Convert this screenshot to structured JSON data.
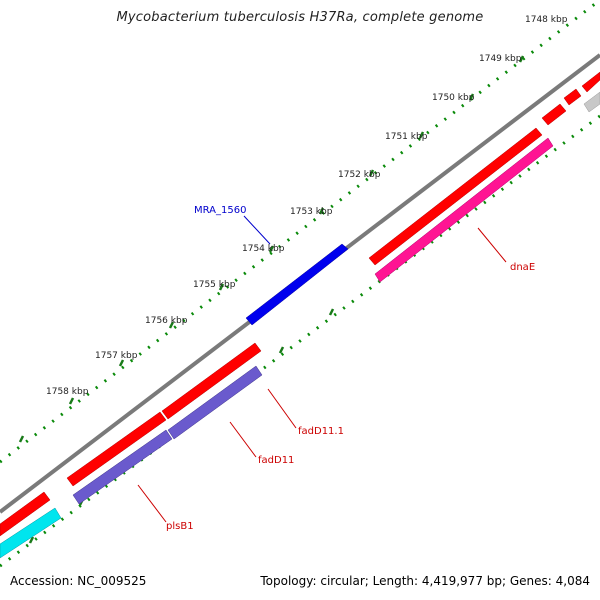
{
  "title": "Mycobacterium tuberculosis H37Ra, complete genome",
  "footer": {
    "accession": "Accession: NC_009525",
    "summary": "Topology: circular; Length: 4,419,977 bp; Genes: 4,084"
  },
  "ticks": [
    "1748 kbp",
    "1749 kbp",
    "1750 kbp",
    "1751 kbp",
    "1752 kbp",
    "1753 kbp",
    "1754 kbp",
    "1755 kbp",
    "1756 kbp",
    "1757 kbp",
    "1758 kbp"
  ],
  "gene_labels": {
    "mra1560": "MRA_1560",
    "dnae": "dnaE",
    "fadd11_1": "fadD11.1",
    "fadd11": "fadD11",
    "plsb1": "plsB1"
  },
  "colors": {
    "gene_red": "#ff0000",
    "gene_blue": "#0000ee",
    "gene_pink": "#ff1493",
    "gene_purple": "#6a5acd",
    "gene_cyan": "#00e5ee",
    "gene_gray": "#c8c8c8",
    "backbone": "#808080",
    "tick_green": "#006400",
    "label_red": "#cc0000",
    "label_blue": "#0000cc"
  }
}
